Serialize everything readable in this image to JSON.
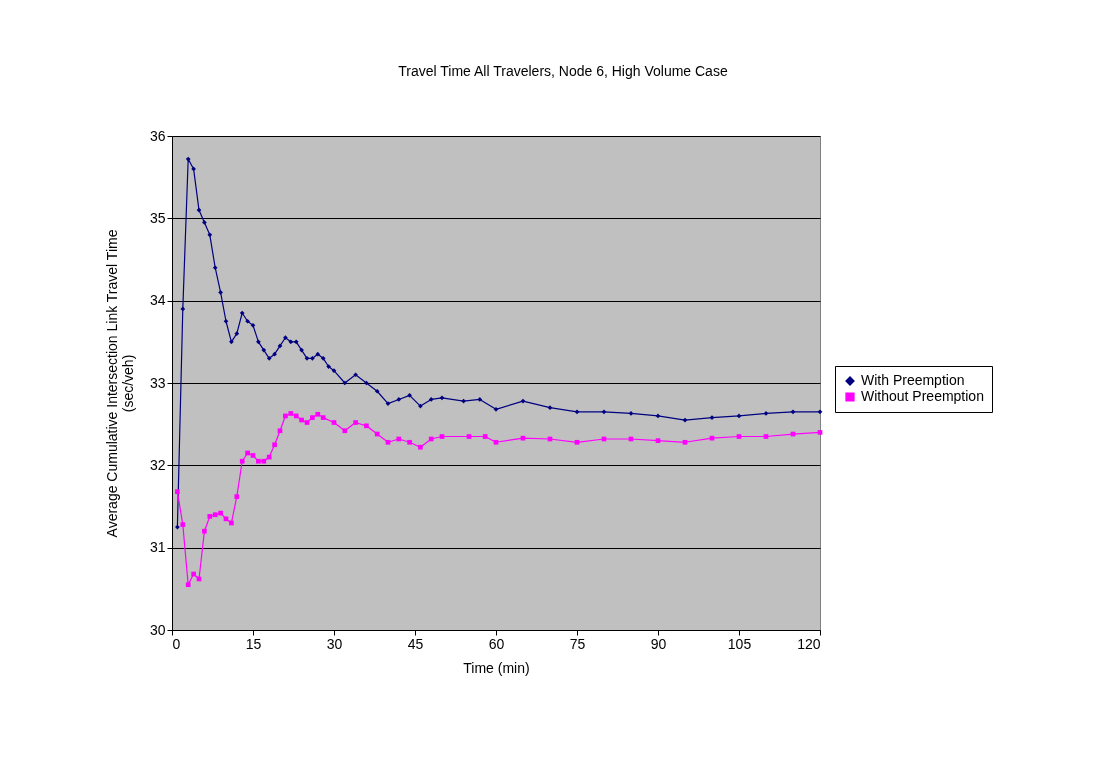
{
  "chart_data": {
    "type": "line",
    "title": "Travel Time All Travelers, Node 6, High Volume Case",
    "xlabel": "Time (min)",
    "ylabel": "Average Cumulative Intersection Link Travel Time\n(sec/veh)",
    "xlim": [
      0,
      120
    ],
    "xticks": [
      0,
      15,
      30,
      45,
      60,
      75,
      90,
      105,
      120
    ],
    "ylim": [
      30,
      36
    ],
    "yticks": [
      30,
      31,
      32,
      33,
      34,
      35,
      36
    ],
    "grid": "y",
    "legend": "right",
    "series": [
      {
        "name": "With Preemption",
        "color": "#000080",
        "marker": "diamond",
        "x": [
          1,
          2,
          3,
          4,
          5,
          6,
          7,
          8,
          9,
          10,
          11,
          12,
          13,
          14,
          15,
          16,
          17,
          18,
          19,
          20,
          21,
          22,
          23,
          24,
          25,
          26,
          27,
          28,
          29,
          30,
          32,
          34,
          36,
          38,
          40,
          42,
          44,
          46,
          48,
          50,
          54,
          57,
          60,
          65,
          70,
          75,
          80,
          85,
          90,
          95,
          100,
          105,
          110,
          115,
          120
        ],
        "values": [
          31.25,
          33.9,
          35.72,
          35.6,
          35.1,
          34.95,
          34.8,
          34.4,
          34.1,
          33.75,
          33.5,
          33.6,
          33.85,
          33.75,
          33.7,
          33.5,
          33.4,
          33.3,
          33.35,
          33.45,
          33.55,
          33.5,
          33.5,
          33.4,
          33.3,
          33.3,
          33.35,
          33.3,
          33.2,
          33.15,
          33.0,
          33.1,
          33.0,
          32.9,
          32.75,
          32.8,
          32.85,
          32.72,
          32.8,
          32.82,
          32.78,
          32.8,
          32.68,
          32.78,
          32.7,
          32.65,
          32.65,
          32.63,
          32.6,
          32.55,
          32.58,
          32.6,
          32.63,
          32.65,
          32.65
        ]
      },
      {
        "name": "Without Preemption",
        "color": "#ff00ff",
        "marker": "square",
        "x": [
          1,
          2,
          3,
          4,
          5,
          6,
          7,
          8,
          9,
          10,
          11,
          12,
          13,
          14,
          15,
          16,
          17,
          18,
          19,
          20,
          21,
          22,
          23,
          24,
          25,
          26,
          27,
          28,
          30,
          32,
          34,
          36,
          38,
          40,
          42,
          44,
          46,
          48,
          50,
          55,
          58,
          60,
          65,
          70,
          75,
          80,
          85,
          90,
          95,
          100,
          105,
          110,
          115,
          120
        ],
        "values": [
          31.68,
          31.28,
          30.55,
          30.68,
          30.62,
          31.2,
          31.38,
          31.4,
          31.42,
          31.35,
          31.3,
          31.62,
          32.05,
          32.15,
          32.12,
          32.05,
          32.05,
          32.1,
          32.25,
          32.42,
          32.6,
          32.63,
          32.6,
          32.55,
          32.52,
          32.58,
          32.62,
          32.58,
          32.52,
          32.42,
          32.52,
          32.48,
          32.38,
          32.28,
          32.32,
          32.28,
          32.22,
          32.32,
          32.35,
          32.35,
          32.35,
          32.28,
          32.33,
          32.32,
          32.28,
          32.32,
          32.32,
          32.3,
          32.28,
          32.33,
          32.35,
          32.35,
          32.38,
          32.4
        ]
      }
    ]
  }
}
